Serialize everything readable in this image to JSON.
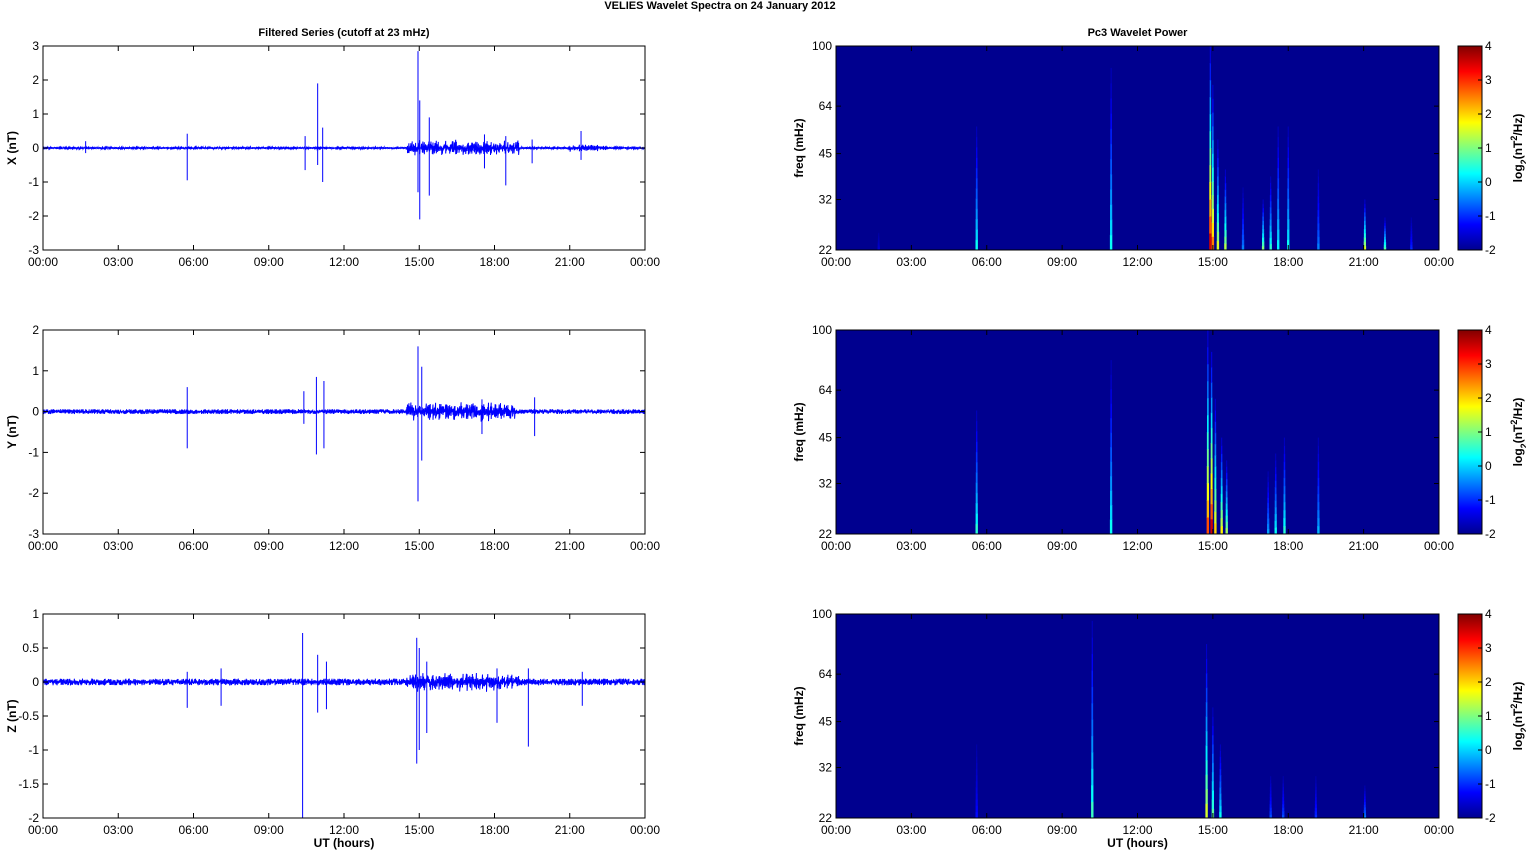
{
  "figure_title": "VELIES Wavelet Spectra on 24 January   2012",
  "chart_data": [
    {
      "type": "line",
      "title": "Filtered Series (cutoff at 23 mHz)",
      "ylabel": "X (nT)",
      "xlabel": "",
      "xlim": [
        "00:00",
        "24:00"
      ],
      "ylim": [
        -3,
        3
      ],
      "x_ticks": [
        "00:00",
        "03:00",
        "06:00",
        "09:00",
        "12:00",
        "15:00",
        "18:00",
        "21:00",
        "00:00"
      ],
      "y_ticks": [
        "-3",
        "-2",
        "-1",
        "0",
        "1",
        "2",
        "3"
      ],
      "color": "#0000ff",
      "series": [
        {
          "baseline_noise": 0.03,
          "spikes": [
            {
              "t": 5.75,
              "up": 0.42,
              "down": -0.95
            },
            {
              "t": 1.7,
              "up": 0.2,
              "down": -0.15
            },
            {
              "t": 10.45,
              "up": 0.35,
              "down": -0.65
            },
            {
              "t": 10.95,
              "up": 1.9,
              "down": -0.5
            },
            {
              "t": 11.15,
              "up": 0.6,
              "down": -1.0
            },
            {
              "t": 14.95,
              "up": 2.85,
              "down": -1.3
            },
            {
              "t": 15.02,
              "up": 1.4,
              "down": -2.1
            },
            {
              "t": 15.4,
              "up": 0.9,
              "down": -1.4
            },
            {
              "t": 17.6,
              "up": 0.4,
              "down": -0.6
            },
            {
              "t": 18.45,
              "up": 0.35,
              "down": -1.1
            },
            {
              "t": 19.5,
              "up": 0.25,
              "down": -0.45
            },
            {
              "t": 21.45,
              "up": 0.5,
              "down": -0.35
            }
          ],
          "active_intervals": [
            [
              14.5,
              19.0,
              0.25
            ],
            [
              21.0,
              22.5,
              0.12
            ]
          ]
        }
      ]
    },
    {
      "type": "line",
      "title": "",
      "ylabel": "Y (nT)",
      "xlabel": "",
      "xlim": [
        "00:00",
        "24:00"
      ],
      "ylim": [
        -3,
        2
      ],
      "x_ticks": [
        "00:00",
        "03:00",
        "06:00",
        "09:00",
        "12:00",
        "15:00",
        "18:00",
        "21:00",
        "00:00"
      ],
      "y_ticks": [
        "-3",
        "-2",
        "-1",
        "0",
        "1",
        "2"
      ],
      "color": "#0000ff",
      "series": [
        {
          "baseline_noise": 0.06,
          "spikes": [
            {
              "t": 5.75,
              "up": 0.6,
              "down": -0.9
            },
            {
              "t": 10.4,
              "up": 0.5,
              "down": -0.3
            },
            {
              "t": 10.9,
              "up": 0.85,
              "down": -1.05
            },
            {
              "t": 11.2,
              "up": 0.75,
              "down": -0.9
            },
            {
              "t": 14.95,
              "up": 1.6,
              "down": -2.2
            },
            {
              "t": 15.1,
              "up": 1.1,
              "down": -1.2
            },
            {
              "t": 17.5,
              "up": 0.3,
              "down": -0.55
            },
            {
              "t": 19.6,
              "up": 0.35,
              "down": -0.6
            }
          ],
          "active_intervals": [
            [
              14.5,
              18.8,
              0.25
            ]
          ]
        }
      ]
    },
    {
      "type": "line",
      "title": "",
      "ylabel": "Z (nT)",
      "xlabel": "UT (hours)",
      "xlim": [
        "00:00",
        "24:00"
      ],
      "ylim": [
        -2,
        1
      ],
      "x_ticks": [
        "00:00",
        "03:00",
        "06:00",
        "09:00",
        "12:00",
        "15:00",
        "18:00",
        "21:00",
        "00:00"
      ],
      "y_ticks": [
        "-2",
        "-1.5",
        "-1",
        "-0.5",
        "0",
        "0.5",
        "1"
      ],
      "color": "#0000ff",
      "series": [
        {
          "baseline_noise": 0.05,
          "spikes": [
            {
              "t": 5.75,
              "up": 0.15,
              "down": -0.38
            },
            {
              "t": 7.1,
              "up": 0.2,
              "down": -0.35
            },
            {
              "t": 10.35,
              "up": 0.72,
              "down": -2.0
            },
            {
              "t": 10.95,
              "up": 0.4,
              "down": -0.45
            },
            {
              "t": 11.3,
              "up": 0.3,
              "down": -0.4
            },
            {
              "t": 14.9,
              "up": 0.65,
              "down": -1.2
            },
            {
              "t": 15.0,
              "up": 0.5,
              "down": -1.0
            },
            {
              "t": 15.3,
              "up": 0.3,
              "down": -0.75
            },
            {
              "t": 18.1,
              "up": 0.2,
              "down": -0.6
            },
            {
              "t": 19.35,
              "up": 0.2,
              "down": -0.95
            },
            {
              "t": 21.5,
              "up": 0.15,
              "down": -0.35
            }
          ],
          "active_intervals": [
            [
              14.5,
              19.0,
              0.15
            ]
          ]
        }
      ]
    },
    {
      "type": "heatmap",
      "title": "Pc3 Wavelet Power",
      "ylabel": "freq (mHz)",
      "xlabel": "",
      "xlim": [
        "00:00",
        "24:00"
      ],
      "ylim": [
        22,
        100
      ],
      "y_scale": "log",
      "x_ticks": [
        "00:00",
        "03:00",
        "06:00",
        "09:00",
        "12:00",
        "15:00",
        "18:00",
        "21:00",
        "00:00"
      ],
      "y_ticks": [
        "22",
        "32",
        "45",
        "64",
        "100"
      ],
      "colorbar": {
        "label": "log2(nT2/Hz)",
        "range": [
          -2,
          4
        ],
        "ticks": [
          "-2",
          "-1",
          "0",
          "1",
          "2",
          "3",
          "4"
        ],
        "colormap": "jet"
      },
      "streaks": [
        {
          "t": 1.7,
          "top": 25,
          "peak": -1.5
        },
        {
          "t": 5.6,
          "top": 55,
          "peak": 0.3
        },
        {
          "t": 10.95,
          "top": 85,
          "peak": 0.3
        },
        {
          "t": 14.9,
          "top": 100,
          "peak": 3.5
        },
        {
          "t": 15.0,
          "top": 75,
          "peak": 2.5
        },
        {
          "t": 15.2,
          "top": 50,
          "peak": 1.5
        },
        {
          "t": 15.5,
          "top": 40,
          "peak": 1.3
        },
        {
          "t": 16.2,
          "top": 35,
          "peak": -0.5
        },
        {
          "t": 17.0,
          "top": 32,
          "peak": 1.0
        },
        {
          "t": 17.3,
          "top": 38,
          "peak": 0.5
        },
        {
          "t": 17.6,
          "top": 55,
          "peak": 0.2
        },
        {
          "t": 18.0,
          "top": 55,
          "peak": 0.3
        },
        {
          "t": 19.2,
          "top": 40,
          "peak": -0.5
        },
        {
          "t": 21.05,
          "top": 32,
          "peak": 1.5
        },
        {
          "t": 21.85,
          "top": 28,
          "peak": 0.8
        },
        {
          "t": 22.9,
          "top": 28,
          "peak": -1.0
        }
      ]
    },
    {
      "type": "heatmap",
      "title": "",
      "ylabel": "freq (mHz)",
      "xlabel": "",
      "xlim": [
        "00:00",
        "24:00"
      ],
      "ylim": [
        22,
        100
      ],
      "y_scale": "log",
      "x_ticks": [
        "00:00",
        "03:00",
        "06:00",
        "09:00",
        "12:00",
        "15:00",
        "18:00",
        "21:00",
        "00:00"
      ],
      "y_ticks": [
        "22",
        "32",
        "45",
        "64",
        "100"
      ],
      "colorbar": {
        "label": "log2(nT2/Hz)",
        "range": [
          -2,
          4
        ],
        "ticks": [
          "-2",
          "-1",
          "0",
          "1",
          "2",
          "3",
          "4"
        ],
        "colormap": "jet"
      },
      "streaks": [
        {
          "t": 5.6,
          "top": 55,
          "peak": 0.5
        },
        {
          "t": 10.95,
          "top": 80,
          "peak": 0.3
        },
        {
          "t": 14.8,
          "top": 100,
          "peak": 2.8
        },
        {
          "t": 14.95,
          "top": 85,
          "peak": 3.5
        },
        {
          "t": 15.1,
          "top": 60,
          "peak": 2.0
        },
        {
          "t": 15.35,
          "top": 45,
          "peak": 1.8
        },
        {
          "t": 15.55,
          "top": 38,
          "peak": 1.2
        },
        {
          "t": 17.2,
          "top": 35,
          "peak": -0.3
        },
        {
          "t": 17.5,
          "top": 40,
          "peak": 0.3
        },
        {
          "t": 17.85,
          "top": 45,
          "peak": 0.5
        },
        {
          "t": 19.2,
          "top": 45,
          "peak": -0.2
        }
      ]
    },
    {
      "type": "heatmap",
      "title": "",
      "ylabel": "freq (mHz)",
      "xlabel": "UT (hours)",
      "xlim": [
        "00:00",
        "24:00"
      ],
      "ylim": [
        22,
        100
      ],
      "y_scale": "log",
      "x_ticks": [
        "00:00",
        "03:00",
        "06:00",
        "09:00",
        "12:00",
        "15:00",
        "18:00",
        "21:00",
        "00:00"
      ],
      "y_ticks": [
        "22",
        "32",
        "45",
        "64",
        "100"
      ],
      "colorbar": {
        "label": "log2(nT2/Hz)",
        "range": [
          -2,
          4
        ],
        "ticks": [
          "-2",
          "-1",
          "0",
          "1",
          "2",
          "3",
          "4"
        ],
        "colormap": "jet"
      },
      "streaks": [
        {
          "t": 5.6,
          "top": 38,
          "peak": -1.2
        },
        {
          "t": 10.2,
          "top": 95,
          "peak": 0.6
        },
        {
          "t": 14.75,
          "top": 80,
          "peak": 1.5
        },
        {
          "t": 15.0,
          "top": 50,
          "peak": 0.8
        },
        {
          "t": 15.3,
          "top": 38,
          "peak": 0.3
        },
        {
          "t": 17.3,
          "top": 30,
          "peak": -0.8
        },
        {
          "t": 17.8,
          "top": 30,
          "peak": -0.8
        },
        {
          "t": 19.1,
          "top": 30,
          "peak": -1.0
        },
        {
          "t": 21.05,
          "top": 28,
          "peak": -0.5
        }
      ]
    }
  ]
}
